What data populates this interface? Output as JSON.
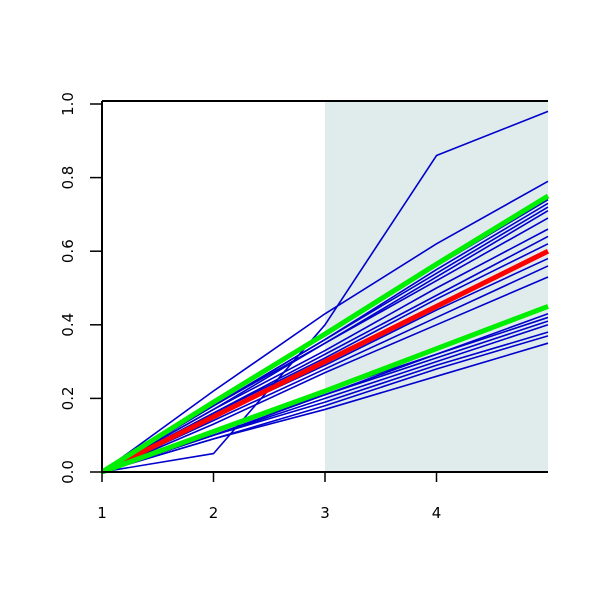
{
  "chart_data": {
    "type": "line",
    "x": [
      1,
      2,
      3,
      4,
      5
    ],
    "xlim": [
      1,
      5
    ],
    "ylim": [
      0,
      1
    ],
    "xticks": [
      1,
      2,
      3,
      4
    ],
    "yticks": [
      {
        "value": 0,
        "label": "0.0"
      },
      {
        "value": 0.2,
        "label": "0.2"
      },
      {
        "value": 0.4,
        "label": "0.4"
      },
      {
        "value": 0.6,
        "label": "0.6"
      },
      {
        "value": 0.8,
        "label": "0.8"
      },
      {
        "value": 1,
        "label": "1.0"
      }
    ],
    "shade": {
      "xrange": [
        3,
        5
      ],
      "color": "#e0ecec"
    },
    "series": [
      {
        "color": "#0000cc",
        "values": [
          0,
          0.05,
          0.4,
          0.86,
          0.98
        ]
      },
      {
        "color": "#0000cc",
        "values": [
          0,
          0.22,
          0.43,
          0.62,
          0.79
        ]
      },
      {
        "color": "#0000cc",
        "values": [
          0,
          0.19,
          0.37,
          0.56,
          0.74
        ]
      },
      {
        "color": "#0000cc",
        "values": [
          0,
          0.18,
          0.36,
          0.55,
          0.73
        ]
      },
      {
        "color": "#0000cc",
        "values": [
          0,
          0.18,
          0.36,
          0.54,
          0.72
        ]
      },
      {
        "color": "#0000cc",
        "values": [
          0,
          0.18,
          0.35,
          0.53,
          0.71
        ]
      },
      {
        "color": "#0000cc",
        "values": [
          0,
          0.17,
          0.35,
          0.52,
          0.69
        ]
      },
      {
        "color": "#0000cc",
        "values": [
          0,
          0.17,
          0.33,
          0.5,
          0.66
        ]
      },
      {
        "color": "#0000cc",
        "values": [
          0,
          0.16,
          0.32,
          0.48,
          0.64
        ]
      },
      {
        "color": "#0000cc",
        "values": [
          0,
          0.16,
          0.31,
          0.47,
          0.62
        ]
      },
      {
        "color": "#0000cc",
        "values": [
          0,
          0.15,
          0.29,
          0.44,
          0.58
        ]
      },
      {
        "color": "#0000cc",
        "values": [
          0,
          0.14,
          0.28,
          0.42,
          0.56
        ]
      },
      {
        "color": "#0000cc",
        "values": [
          0,
          0.13,
          0.27,
          0.4,
          0.53
        ]
      },
      {
        "color": "#0000cc",
        "values": [
          0,
          0.11,
          0.22,
          0.32,
          0.43
        ]
      },
      {
        "color": "#0000cc",
        "values": [
          0,
          0.11,
          0.21,
          0.32,
          0.42
        ]
      },
      {
        "color": "#0000cc",
        "values": [
          0,
          0.1,
          0.21,
          0.31,
          0.41
        ]
      },
      {
        "color": "#0000cc",
        "values": [
          0,
          0.1,
          0.2,
          0.3,
          0.4
        ]
      },
      {
        "color": "#0000cc",
        "values": [
          0,
          0.1,
          0.19,
          0.29,
          0.38
        ]
      },
      {
        "color": "#0000cc",
        "values": [
          0,
          0.09,
          0.18,
          0.28,
          0.37
        ]
      },
      {
        "color": "#0000cc",
        "values": [
          0,
          0.09,
          0.17,
          0.26,
          0.35
        ]
      },
      {
        "color": "#ff0000",
        "values": [
          0,
          0.15,
          0.3,
          0.45,
          0.6
        ]
      },
      {
        "color": "#00ee00",
        "values": [
          0,
          0.19,
          0.375,
          0.565,
          0.75
        ]
      },
      {
        "color": "#00ee00",
        "values": [
          0,
          0.11,
          0.22,
          0.335,
          0.45
        ]
      }
    ]
  }
}
